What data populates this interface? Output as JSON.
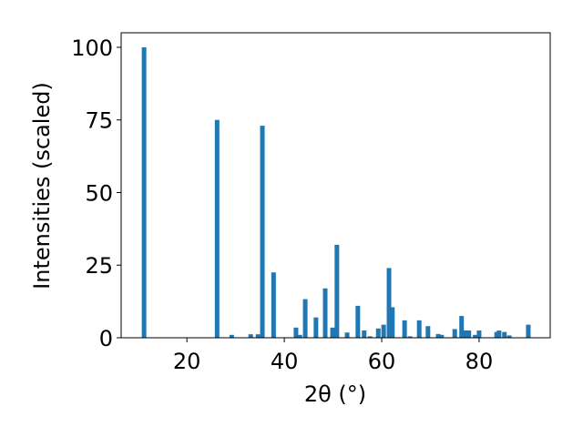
{
  "chart_data": {
    "type": "bar",
    "x_label": "2θ (°)",
    "y_label": "Intensities (scaled)",
    "color": "#1f77b4",
    "x": [
      11.2,
      26.2,
      29.2,
      33.1,
      34.6,
      35.5,
      37.8,
      42.4,
      43.2,
      44.3,
      46.5,
      48.4,
      49.9,
      50.8,
      52.9,
      55.1,
      56.4,
      57.6,
      59.3,
      60.4,
      61.5,
      62.2,
      64.7,
      65.8,
      67.7,
      69.5,
      71.6,
      72.3,
      75.0,
      76.4,
      77.2,
      77.9,
      79.2,
      80.0,
      83.6,
      84.1,
      85.2,
      86.2,
      90.1
    ],
    "values": [
      100,
      75,
      1,
      1.2,
      1.2,
      73,
      22.5,
      3.5,
      1,
      13.3,
      7,
      17,
      3.5,
      32,
      1.8,
      11,
      2.5,
      0.5,
      3.2,
      4.5,
      24,
      10.5,
      6,
      0.5,
      6,
      4,
      1.3,
      1,
      3,
      7.5,
      2.5,
      2.5,
      1,
      2.5,
      2,
      2.5,
      2,
      0.8,
      4.5
    ],
    "xlim": [
      6.5,
      94.6
    ],
    "ylim": [
      0,
      105
    ],
    "xticks": [
      20,
      40,
      60,
      80
    ],
    "yticks": [
      0,
      25,
      50,
      75,
      100
    ]
  }
}
